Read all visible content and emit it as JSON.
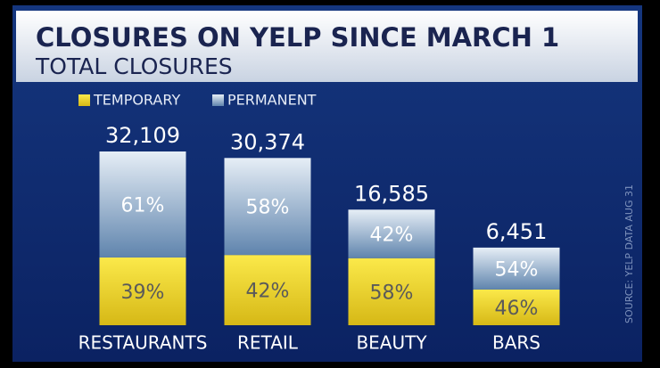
{
  "chart_data": {
    "type": "stacked-bar",
    "title": "CLOSURES ON YELP SINCE MARCH 1",
    "subtitle": "TOTAL CLOSURES",
    "source": "SOURCE: YELP DATA AUG 31",
    "categories": [
      "RESTAURANTS",
      "RETAIL",
      "BEAUTY",
      "BARS"
    ],
    "totals": {
      "values": [
        32109,
        30374,
        16585,
        6451
      ],
      "value_labels": [
        "32,109",
        "30,374",
        "16,585",
        "6,451"
      ]
    },
    "series": [
      {
        "name": "TEMPORARY",
        "color": "#e8cc1e",
        "values": [
          39,
          42,
          58,
          46
        ],
        "value_labels": [
          "39%",
          "42%",
          "58%",
          "46%"
        ]
      },
      {
        "name": "PERMANENT",
        "color": "#9fb8d2",
        "values": [
          61,
          58,
          42,
          54
        ],
        "value_labels": [
          "61%",
          "58%",
          "42%",
          "54%"
        ]
      }
    ]
  }
}
